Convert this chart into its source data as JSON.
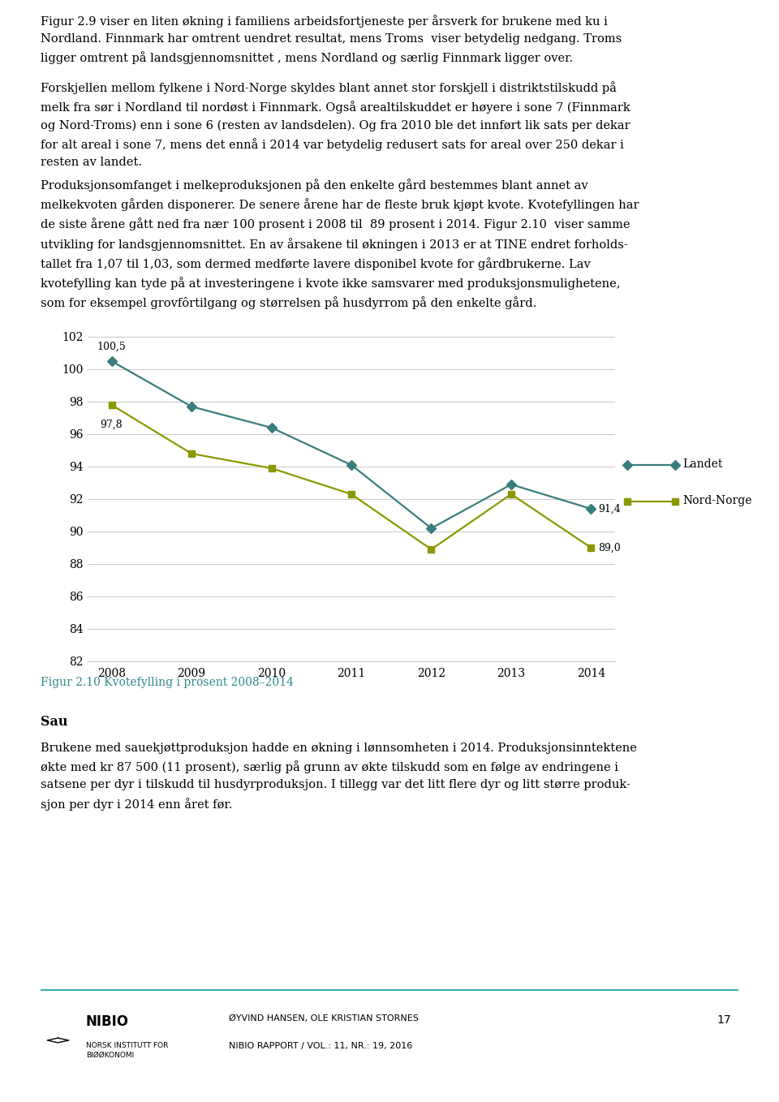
{
  "years": [
    2008,
    2009,
    2010,
    2011,
    2012,
    2013,
    2014
  ],
  "landet": [
    100.5,
    97.7,
    96.4,
    94.1,
    90.2,
    92.9,
    91.4
  ],
  "nord_norge": [
    97.8,
    94.8,
    93.9,
    92.3,
    88.9,
    92.3,
    89.0
  ],
  "landet_color": "#3a7d7d",
  "nord_norge_color": "#8b9900",
  "landet_label": "Landet",
  "nord_norge_label": "Nord-Norge",
  "ylim": [
    82,
    103
  ],
  "yticks": [
    82,
    84,
    86,
    88,
    90,
    92,
    94,
    96,
    98,
    100,
    102
  ],
  "grid_color": "#cccccc",
  "figure_caption": "Figur 2.10 Kvotefylling i prosent 2008–2014",
  "section_header": "Sau",
  "footer_authors": "ØYVIND HANSEN, OLE KRISTIAN STORNES",
  "footer_report": "NIBIO RAPPORT / VOL.: 11, NR.: 19, 2016",
  "footer_page": "17",
  "caption_color": "#2e8b8b",
  "text_fontsize": 10.5,
  "text_font": "serif",
  "para1": "Figur 2.9 viser en liten økning i familiens arbeidsfortjeneste per årsverk for brukene med ku i\nNordland. Finnmark har omtrent uendret resultat, mens Troms  viser betydelig nedgang. Troms\nligger omtrent på landsgjennomsnittet , mens Nordland og særlig Finnmark ligger over.",
  "para2": "Forskjellen mellom fylkene i Nord-Norge skyldes blant annet stor forskjell i distriktstilskudd på\nmelk fra sør i Nordland til nordøst i Finnmark. Også arealtilskuddet er høyere i sone 7 (Finnmark\nog Nord-Troms) enn i sone 6 (resten av landsdelen). Og fra 2010 ble det innført lik sats per dekar\nfor alt areal i sone 7, mens det ennå i 2014 var betydelig redusert sats for areal over 250 dekar i\nresten av landet.",
  "para3": "Produksjonsomfanget i melkeproduksjonen på den enkelte gård bestemmes blant annet av\nmelkekvoten gården disponerer. De senere årene har de fleste bruk kjøpt kvote. Kvotefyllingen har\nde siste årene gått ned fra nær 100 prosent i 2008 til  89 prosent i 2014. Figur 2.10  viser samme\nutvikling for landsgjennomsnittet. En av årsakene til økningen i 2013 er at TINE endret forholds-\ntallet fra 1,07 til 1,03, som dermed medførte lavere disponibel kvote for gårdbrukerne. Lav\nkvotefylling kan tyde på at investeringene i kvote ikke samsvarer med produksjonsmulighetene,\nsom for eksempel grovfôrtilgang og størrelsen på husdyrrom på den enkelte gård.",
  "sau_para": "Brukene med sauekjøttproduksjon hadde en økning i lønnsomheten i 2014. Produksjonsinntektene\nøkte med kr 87 500 (11 prosent), særlig på grunn av økte tilskudd som en følge av endringene i\nsatsene per dyr i tilskudd til husdyrproduksjon. I tillegg var det litt flere dyr og litt større produk-\nsjon per dyr i 2014 enn året før."
}
